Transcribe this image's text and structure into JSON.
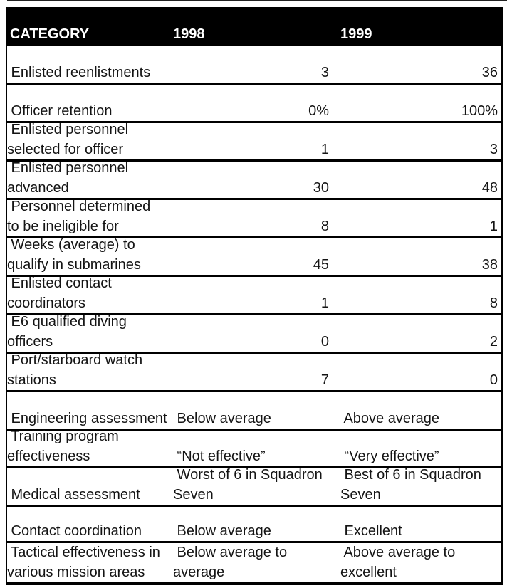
{
  "colors": {
    "page_background": "#ffffff",
    "header_background": "#000000",
    "header_text": "#ffffff",
    "border": "#000000",
    "body_text": "#141414"
  },
  "table": {
    "header": {
      "category": "CATEGORY",
      "y1998": "1998",
      "y1999": "1999"
    },
    "rows": [
      {
        "category": " Enlisted reenlistments",
        "v1998": "3",
        "v1999": "36"
      },
      {
        "category": " Officer retention",
        "v1998": "0%",
        "v1999": "100%"
      },
      {
        "category": " Enlisted personnel\nselected for officer",
        "v1998": "1",
        "v1999": "3"
      },
      {
        "category": " Enlisted personnel\nadvanced",
        "v1998": "30",
        "v1999": "48"
      },
      {
        "category": " Personnel determined\nto be ineligible for",
        "v1998": "8",
        "v1999": "1"
      },
      {
        "category": " Weeks (average) to\nqualify in submarines",
        "v1998": "45",
        "v1999": "38"
      },
      {
        "category": " Enlisted contact\ncoordinators",
        "v1998": "1",
        "v1999": "8"
      },
      {
        "category": " E6 qualified diving\nofficers",
        "v1998": "0",
        "v1999": "2"
      },
      {
        "category": " Port/starboard watch\nstations",
        "v1998": "7",
        "v1999": "0"
      },
      {
        "category": " Engineering assessment",
        "v1998": " Below average",
        "v1999": " Above average"
      },
      {
        "category": " Training program\neffectiveness",
        "v1998": " “Not effective”",
        "v1999": " “Very effective”"
      },
      {
        "category": " Medical assessment",
        "v1998": " Worst of 6 in Squadron\nSeven",
        "v1999": " Best of 6 in Squadron\nSeven"
      },
      {
        "category": " Contact coordination",
        "v1998": " Below average",
        "v1999": " Excellent"
      },
      {
        "category": " Tactical effectiveness in\nvarious mission areas",
        "v1998": " Below average to\naverage",
        "v1999": " Above average to\nexcellent"
      }
    ]
  }
}
